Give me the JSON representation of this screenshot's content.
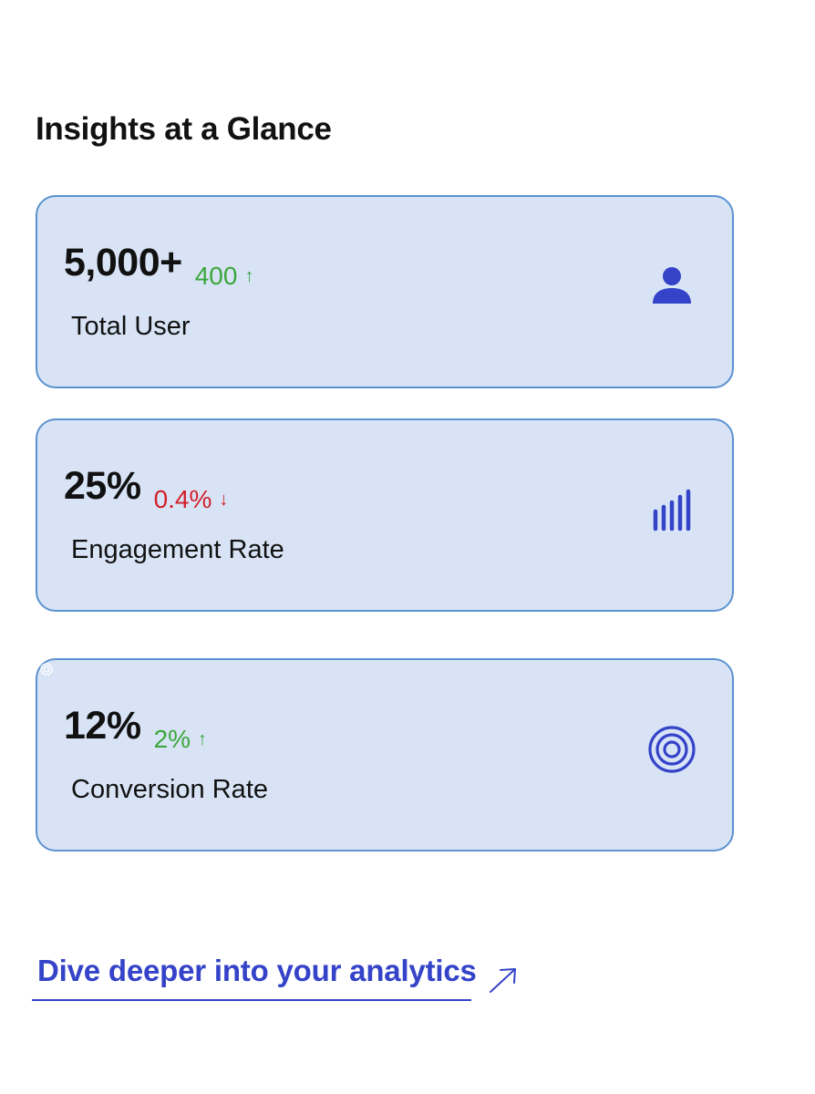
{
  "page": {
    "title": "Insights at a Glance"
  },
  "cards": [
    {
      "value": "5,000+",
      "delta": "400",
      "delta_arrow": "↑",
      "delta_direction": "up",
      "label": "Total User",
      "icon": "user-icon"
    },
    {
      "value": "25%",
      "delta": "0.4%",
      "delta_arrow": "↓",
      "delta_direction": "down",
      "label": "Engagement Rate",
      "icon": "bar-chart-icon"
    },
    {
      "value": "12%",
      "delta": "2%",
      "delta_arrow": "↑",
      "delta_direction": "up",
      "label": "Conversion Rate",
      "icon": "target-icon"
    }
  ],
  "cta": {
    "label": "Dive deeper into your analytics",
    "icon": "arrow-up-right-icon"
  },
  "colors": {
    "card_background": "#d8e4f6",
    "card_border": "#5c92cf",
    "accent": "#3443c8",
    "positive": "#3ba63b",
    "negative": "#d3202a"
  }
}
